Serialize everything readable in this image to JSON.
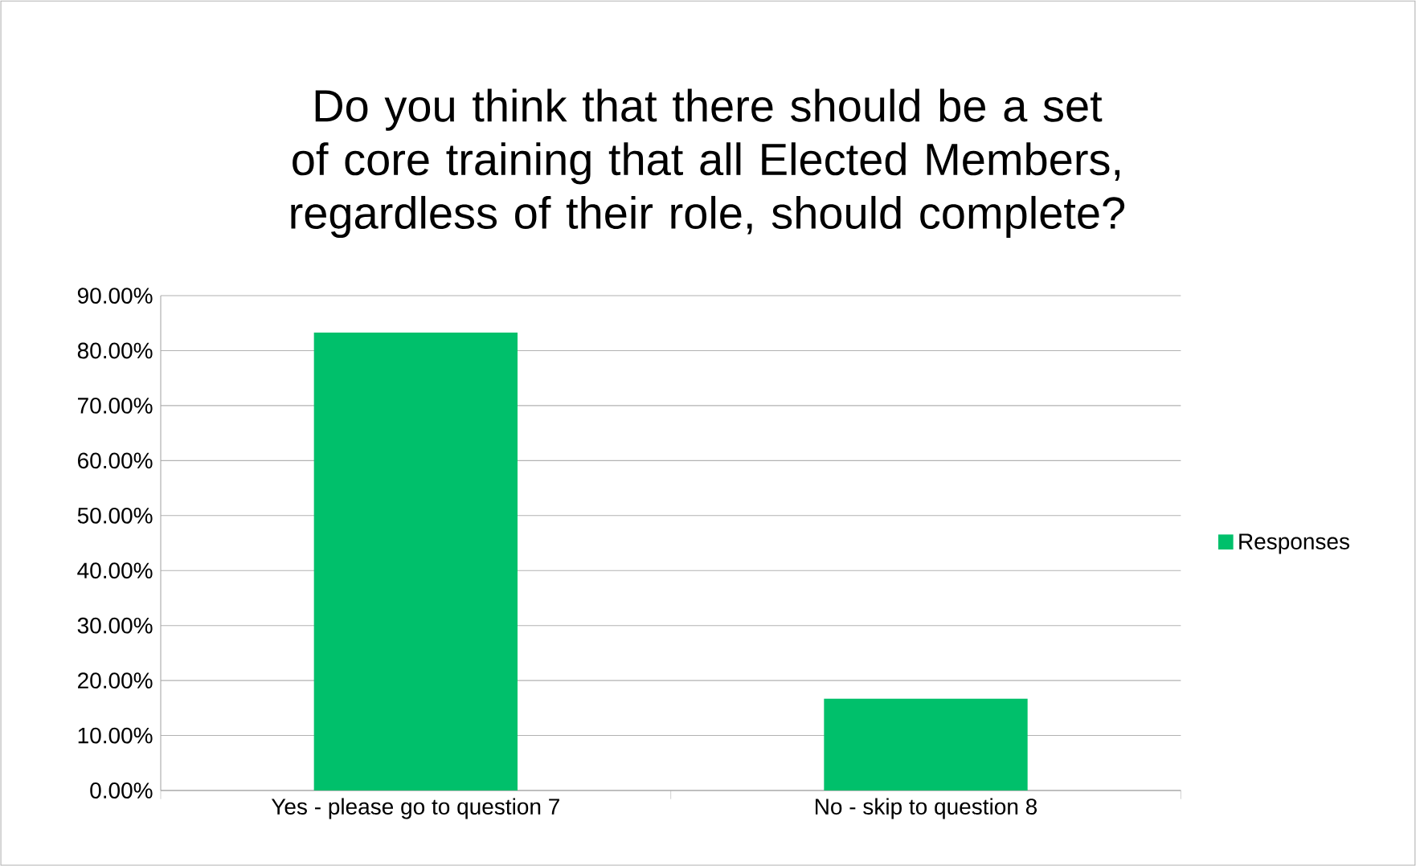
{
  "chart_data": {
    "type": "bar",
    "title": "Do you think that there should be a set of core training that all Elected Members, regardless of their role, should complete?",
    "categories": [
      "Yes - please go to question 7",
      "No - skip to question 8"
    ],
    "series": [
      {
        "name": "Responses",
        "color": "#00c06b",
        "values": [
          83.3,
          16.7
        ]
      }
    ],
    "ylim": [
      0,
      90
    ],
    "yticks": [
      {
        "value": 0,
        "label": "0.00%"
      },
      {
        "value": 10,
        "label": "10.00%"
      },
      {
        "value": 20,
        "label": "20.00%"
      },
      {
        "value": 30,
        "label": "30.00%"
      },
      {
        "value": 40,
        "label": "40.00%"
      },
      {
        "value": 50,
        "label": "50.00%"
      },
      {
        "value": 60,
        "label": "60.00%"
      },
      {
        "value": 70,
        "label": "70.00%"
      },
      {
        "value": 80,
        "label": "80.00%"
      },
      {
        "value": 90,
        "label": "90.00%"
      }
    ],
    "grid": "y",
    "legend": "right"
  }
}
